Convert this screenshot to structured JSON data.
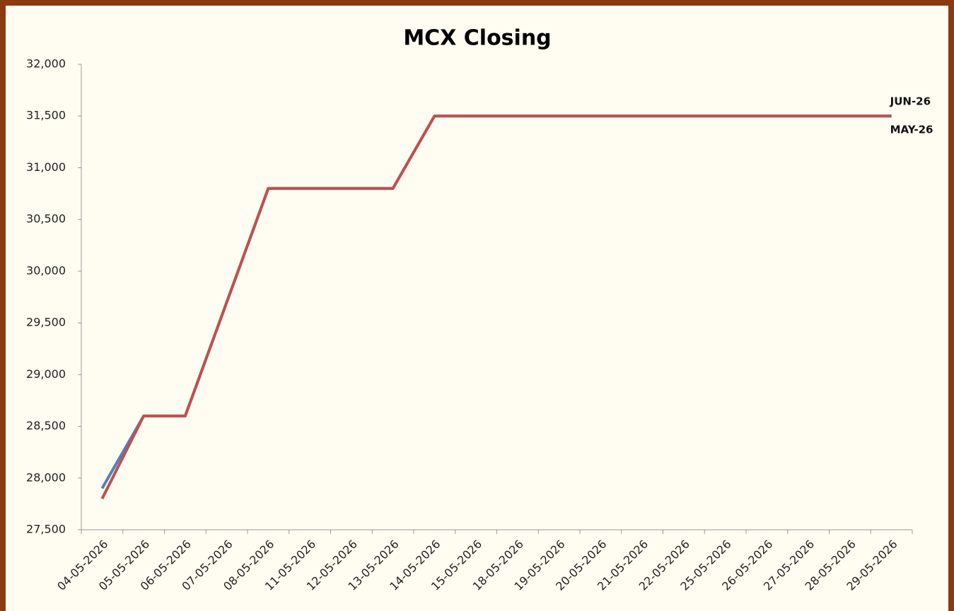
{
  "chart_data": {
    "type": "line",
    "title": "MCX Closing",
    "categories": [
      "04-05-2026",
      "05-05-2026",
      "06-05-2026",
      "07-05-2026",
      "08-05-2026",
      "11-05-2026",
      "12-05-2026",
      "13-05-2026",
      "14-05-2026",
      "15-05-2026",
      "18-05-2026",
      "19-05-2026",
      "20-05-2026",
      "21-05-2026",
      "22-05-2026",
      "25-05-2026",
      "26-05-2026",
      "27-05-2026",
      "28-05-2026",
      "29-05-2026"
    ],
    "series": [
      {
        "name": "JUN-26",
        "color": "#4f81bd",
        "values": [
          27900,
          28600,
          28600,
          29700,
          30800,
          30800,
          30800,
          30800,
          31500,
          31500,
          31500,
          31500,
          31500,
          31500,
          31500,
          31500,
          31500,
          31500,
          31500,
          31500
        ]
      },
      {
        "name": "MAY-26",
        "color": "#c0504d",
        "values": [
          27800,
          28600,
          28600,
          29700,
          30800,
          30800,
          30800,
          30800,
          31500,
          31500,
          31500,
          31500,
          31500,
          31500,
          31500,
          31500,
          31500,
          31500,
          31500,
          31500
        ]
      }
    ],
    "ylim": [
      27500,
      32000
    ],
    "yticks": [
      {
        "value": 27500,
        "label": "27,500"
      },
      {
        "value": 28000,
        "label": "28,000"
      },
      {
        "value": 28500,
        "label": "28,500"
      },
      {
        "value": 29000,
        "label": "29,000"
      },
      {
        "value": 29500,
        "label": "29,500"
      },
      {
        "value": 30000,
        "label": "30,000"
      },
      {
        "value": 30500,
        "label": "30,500"
      },
      {
        "value": 31000,
        "label": "31,000"
      },
      {
        "value": 31500,
        "label": "31,500"
      },
      {
        "value": 32000,
        "label": "32,000"
      }
    ],
    "grid": false
  }
}
